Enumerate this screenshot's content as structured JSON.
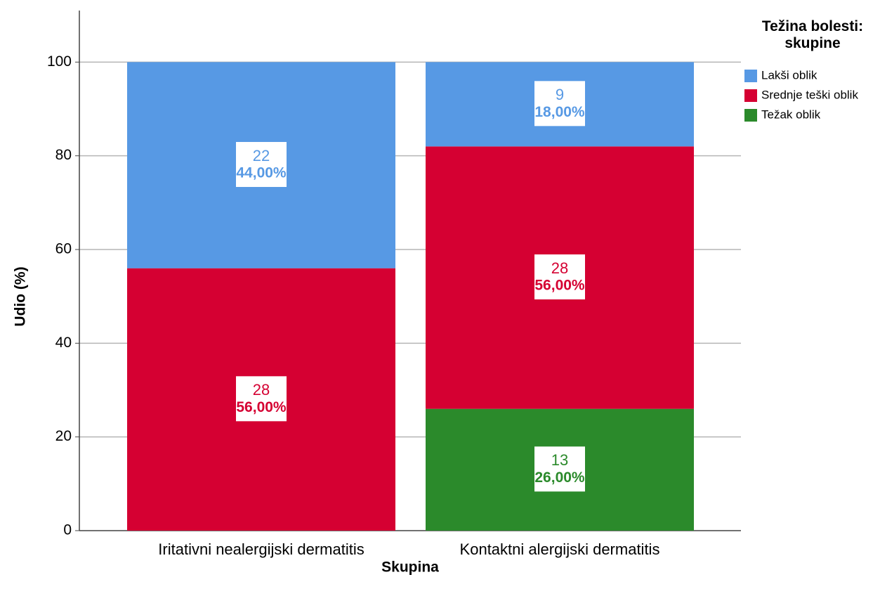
{
  "chart_data": {
    "type": "stacked_bar",
    "legend_title": "Težina bolesti: skupine",
    "x_label": "Skupina",
    "y_label": "Udio (%)",
    "categories": [
      "Iritativni nealergijski dermatitis",
      "Kontaktni alergijski dermatitis"
    ],
    "series": [
      {
        "name": "Lakši oblik",
        "color": "#5799e4",
        "values": [
          44,
          18
        ],
        "value_labels": [
          "44,00%",
          "18,00%"
        ],
        "counts": [
          22,
          9
        ]
      },
      {
        "name": "Srednje teški oblik",
        "color": "#d50032",
        "values": [
          56,
          56
        ],
        "value_labels": [
          "56,00%",
          "56,00%"
        ],
        "counts": [
          28,
          28
        ]
      },
      {
        "name": "Težak oblik",
        "color": "#2b8a2b",
        "values": [
          null,
          26
        ],
        "value_labels": [
          null,
          "26,00%"
        ],
        "counts": [
          null,
          13
        ]
      }
    ],
    "ylim": [
      0,
      111
    ],
    "yticks": [
      0,
      20,
      40,
      60,
      80,
      100
    ],
    "grid": true,
    "legend": "right"
  }
}
